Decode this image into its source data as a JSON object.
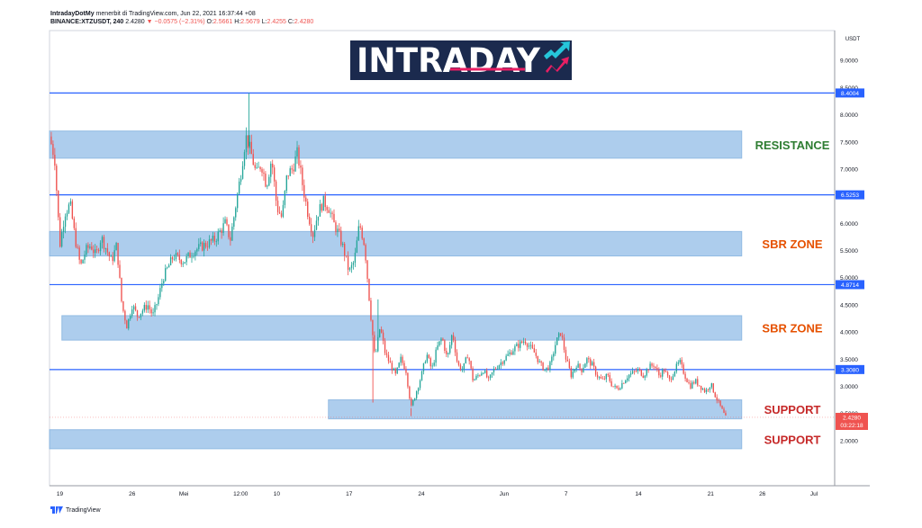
{
  "header": {
    "author": "IntradayDotMy",
    "published_text": "menerbit di TradingView.com, Jun 22, 2021 16:37:44 +08",
    "symbol": "BINANCE:XTZUSDT, 240",
    "last": "2.4280",
    "change": "▼ −0.0575 (−2.31%)",
    "o_label": "O:",
    "o_value": "2.5661",
    "h_label": "H:",
    "h_value": "2.5679",
    "l_label": "L:",
    "l_value": "2.4255",
    "c_label": "C:",
    "c_value": "2.4280"
  },
  "logo": {
    "text_left": "INTRA",
    "text_right": "DAY"
  },
  "footer": {
    "brand": "TradingView"
  },
  "colors": {
    "zone_fill": "#9fc5ea",
    "zone_stroke": "#7fb0df",
    "level_line": "#2962ff",
    "resistance_label": "#2e7d32",
    "sbr_label": "#e65100",
    "support_label": "#c62828",
    "up_candle": "#26a69a",
    "down_candle": "#ef5350",
    "logo_bg": "#1b2a4e",
    "price_tag": "#2962ff",
    "last_tag": "#ef5350"
  },
  "chart_data": {
    "type": "candlestick",
    "symbol": "BINANCE:XTZUSDT",
    "interval": "240",
    "currency": "USDT",
    "ylim": [
      1.5,
      9.5
    ],
    "y_ticks": [
      "9.0000",
      "8.5000",
      "8.0000",
      "7.5000",
      "7.0000",
      "6.5000",
      "6.0000",
      "5.5000",
      "5.0000",
      "4.5000",
      "4.0000",
      "3.5000",
      "3.0000",
      "2.5000",
      "2.0000"
    ],
    "x_ticks": [
      {
        "label": "19",
        "day": 0
      },
      {
        "label": "26",
        "day": 7
      },
      {
        "label": "Mei",
        "day": 12
      },
      {
        "label": "12:00",
        "day": 17.5
      },
      {
        "label": "10",
        "day": 21
      },
      {
        "label": "17",
        "day": 28
      },
      {
        "label": "24",
        "day": 35
      },
      {
        "label": "Jun",
        "day": 43
      },
      {
        "label": "7",
        "day": 49
      },
      {
        "label": "14",
        "day": 56
      },
      {
        "label": "21",
        "day": 63
      },
      {
        "label": "26",
        "day": 68
      },
      {
        "label": "Jul",
        "day": 73
      }
    ],
    "x_range_days": [
      -1.0,
      75.0
    ],
    "close_path": [
      {
        "day": -1.0,
        "price": 7.6
      },
      {
        "day": -0.5,
        "price": 7.2
      },
      {
        "day": 0.0,
        "price": 5.6
      },
      {
        "day": 0.5,
        "price": 6.2
      },
      {
        "day": 1.0,
        "price": 6.35
      },
      {
        "day": 1.5,
        "price": 5.7
      },
      {
        "day": 2.0,
        "price": 5.2
      },
      {
        "day": 2.5,
        "price": 5.5
      },
      {
        "day": 3.0,
        "price": 5.6
      },
      {
        "day": 3.5,
        "price": 5.4
      },
      {
        "day": 4.0,
        "price": 5.75
      },
      {
        "day": 5.0,
        "price": 5.3
      },
      {
        "day": 5.5,
        "price": 5.6
      },
      {
        "day": 6.0,
        "price": 4.5
      },
      {
        "day": 6.5,
        "price": 4.1
      },
      {
        "day": 7.0,
        "price": 4.5
      },
      {
        "day": 7.5,
        "price": 4.3
      },
      {
        "day": 8.0,
        "price": 4.4
      },
      {
        "day": 8.5,
        "price": 4.5
      },
      {
        "day": 9.0,
        "price": 4.3
      },
      {
        "day": 9.5,
        "price": 4.6
      },
      {
        "day": 10.0,
        "price": 5.0
      },
      {
        "day": 11.0,
        "price": 5.4
      },
      {
        "day": 12.0,
        "price": 5.3
      },
      {
        "day": 13.0,
        "price": 5.5
      },
      {
        "day": 14.0,
        "price": 5.6
      },
      {
        "day": 15.0,
        "price": 5.7
      },
      {
        "day": 16.0,
        "price": 6.0
      },
      {
        "day": 16.5,
        "price": 5.7
      },
      {
        "day": 17.0,
        "price": 6.3
      },
      {
        "day": 17.5,
        "price": 6.9
      },
      {
        "day": 18.0,
        "price": 7.6
      },
      {
        "day": 18.5,
        "price": 7.3
      },
      {
        "day": 19.0,
        "price": 6.9
      },
      {
        "day": 19.5,
        "price": 7.1
      },
      {
        "day": 20.0,
        "price": 6.7
      },
      {
        "day": 20.5,
        "price": 7.2
      },
      {
        "day": 21.0,
        "price": 6.3
      },
      {
        "day": 21.5,
        "price": 6.1
      },
      {
        "day": 22.0,
        "price": 6.9
      },
      {
        "day": 22.5,
        "price": 7.0
      },
      {
        "day": 23.0,
        "price": 7.3
      },
      {
        "day": 23.5,
        "price": 6.7
      },
      {
        "day": 24.0,
        "price": 6.2
      },
      {
        "day": 24.5,
        "price": 5.8
      },
      {
        "day": 25.0,
        "price": 6.2
      },
      {
        "day": 25.5,
        "price": 6.4
      },
      {
        "day": 26.0,
        "price": 6.3
      },
      {
        "day": 26.5,
        "price": 6.0
      },
      {
        "day": 27.0,
        "price": 5.8
      },
      {
        "day": 27.5,
        "price": 5.5
      },
      {
        "day": 28.0,
        "price": 5.1
      },
      {
        "day": 28.5,
        "price": 5.3
      },
      {
        "day": 29.0,
        "price": 6.0
      },
      {
        "day": 29.5,
        "price": 5.6
      },
      {
        "day": 30.0,
        "price": 4.5
      },
      {
        "day": 30.5,
        "price": 3.5
      },
      {
        "day": 31.0,
        "price": 4.1
      },
      {
        "day": 31.5,
        "price": 3.6
      },
      {
        "day": 32.0,
        "price": 3.4
      },
      {
        "day": 32.5,
        "price": 3.2
      },
      {
        "day": 33.0,
        "price": 3.5
      },
      {
        "day": 33.5,
        "price": 3.3
      },
      {
        "day": 34.0,
        "price": 2.6
      },
      {
        "day": 34.5,
        "price": 2.9
      },
      {
        "day": 35.0,
        "price": 3.2
      },
      {
        "day": 35.5,
        "price": 3.6
      },
      {
        "day": 36.0,
        "price": 3.3
      },
      {
        "day": 36.5,
        "price": 3.7
      },
      {
        "day": 37.0,
        "price": 3.9
      },
      {
        "day": 37.5,
        "price": 3.5
      },
      {
        "day": 38.0,
        "price": 4.0
      },
      {
        "day": 38.5,
        "price": 3.4
      },
      {
        "day": 39.0,
        "price": 3.3
      },
      {
        "day": 39.5,
        "price": 3.6
      },
      {
        "day": 40.0,
        "price": 3.1
      },
      {
        "day": 40.5,
        "price": 3.2
      },
      {
        "day": 41.0,
        "price": 3.3
      },
      {
        "day": 41.5,
        "price": 3.1
      },
      {
        "day": 42.0,
        "price": 3.3
      },
      {
        "day": 43.0,
        "price": 3.5
      },
      {
        "day": 44.0,
        "price": 3.7
      },
      {
        "day": 45.0,
        "price": 3.85
      },
      {
        "day": 46.0,
        "price": 3.6
      },
      {
        "day": 46.5,
        "price": 3.4
      },
      {
        "day": 47.0,
        "price": 3.3
      },
      {
        "day": 47.5,
        "price": 3.4
      },
      {
        "day": 48.0,
        "price": 3.8
      },
      {
        "day": 48.5,
        "price": 4.0
      },
      {
        "day": 49.0,
        "price": 3.5
      },
      {
        "day": 49.5,
        "price": 3.2
      },
      {
        "day": 50.0,
        "price": 3.4
      },
      {
        "day": 50.5,
        "price": 3.3
      },
      {
        "day": 51.0,
        "price": 3.5
      },
      {
        "day": 51.5,
        "price": 3.4
      },
      {
        "day": 52.0,
        "price": 3.2
      },
      {
        "day": 52.5,
        "price": 3.1
      },
      {
        "day": 53.0,
        "price": 3.2
      },
      {
        "day": 53.5,
        "price": 3.0
      },
      {
        "day": 54.0,
        "price": 2.95
      },
      {
        "day": 55.0,
        "price": 3.2
      },
      {
        "day": 56.0,
        "price": 3.3
      },
      {
        "day": 56.5,
        "price": 3.2
      },
      {
        "day": 57.0,
        "price": 3.35
      },
      {
        "day": 57.5,
        "price": 3.4
      },
      {
        "day": 58.0,
        "price": 3.2
      },
      {
        "day": 58.5,
        "price": 3.3
      },
      {
        "day": 59.0,
        "price": 3.1
      },
      {
        "day": 59.5,
        "price": 3.3
      },
      {
        "day": 60.0,
        "price": 3.45
      },
      {
        "day": 60.5,
        "price": 3.2
      },
      {
        "day": 61.0,
        "price": 3.0
      },
      {
        "day": 61.5,
        "price": 3.1
      },
      {
        "day": 62.0,
        "price": 3.0
      },
      {
        "day": 62.5,
        "price": 2.9
      },
      {
        "day": 63.0,
        "price": 3.05
      },
      {
        "day": 63.5,
        "price": 2.8
      },
      {
        "day": 64.0,
        "price": 2.6
      },
      {
        "day": 64.5,
        "price": 2.4
      }
    ],
    "spikes": [
      {
        "day": 18.3,
        "high": 8.4
      },
      {
        "day": 30.3,
        "low": 2.7
      },
      {
        "day": 30.8,
        "high": 4.6
      },
      {
        "day": 34.0,
        "low": 2.45
      }
    ],
    "zones": [
      {
        "name": "resistance-zone",
        "label": "RESISTANCE",
        "low": 7.2,
        "high": 7.7,
        "start_day": -1.0,
        "end_day": 66.0,
        "label_color": "resistance_label"
      },
      {
        "name": "sbr-zone-upper",
        "label": "SBR ZONE",
        "low": 5.4,
        "high": 5.85,
        "start_day": -1.0,
        "end_day": 66.0,
        "label_color": "sbr_label"
      },
      {
        "name": "sbr-zone-lower",
        "label": "SBR ZONE",
        "low": 3.85,
        "high": 4.3,
        "start_day": 0.2,
        "end_day": 66.0,
        "label_color": "sbr_label"
      },
      {
        "name": "support-zone-upper",
        "label": "SUPPORT",
        "low": 2.4,
        "high": 2.75,
        "start_day": 26.0,
        "end_day": 66.0,
        "label_color": "support_label"
      },
      {
        "name": "support-zone-lower",
        "label": "SUPPORT",
        "low": 1.85,
        "high": 2.2,
        "start_day": -1.0,
        "end_day": 66.0,
        "label_color": "support_label"
      }
    ],
    "levels": [
      {
        "name": "level-8-4004",
        "label": "8.4004",
        "value": 8.4004
      },
      {
        "name": "level-6-5253",
        "label": "6.5253",
        "value": 6.5253
      },
      {
        "name": "level-4-8714",
        "label": "4.8714",
        "value": 4.8714
      },
      {
        "name": "level-3-3080",
        "label": "3.3080",
        "value": 3.308
      }
    ],
    "last_price": {
      "label": "2.4280",
      "value": 2.428,
      "countdown": "03:22:18"
    }
  }
}
